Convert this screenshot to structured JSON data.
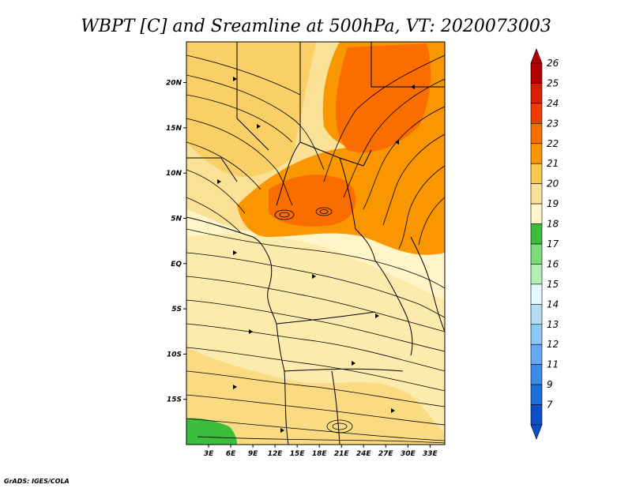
{
  "title": "WBPT [C] and Sreamline at 500hPa, VT: 2020073003",
  "credit": "GrADS: IGES/COLA",
  "lon_labels": [
    "3E",
    "6E",
    "9E",
    "12E",
    "15E",
    "18E",
    "21E",
    "24E",
    "27E",
    "30E",
    "33E"
  ],
  "lon_values": [
    3,
    6,
    9,
    12,
    15,
    18,
    21,
    24,
    27,
    30,
    33
  ],
  "lat_labels": [
    "20N",
    "15N",
    "10N",
    "5N",
    "EQ",
    "5S",
    "10S",
    "15S"
  ],
  "lat_values": [
    20,
    15,
    10,
    5,
    0,
    -5,
    -10,
    -15
  ],
  "map_extent": {
    "lon": [
      0,
      35
    ],
    "lat": [
      -20,
      24.5
    ]
  },
  "colorbar": {
    "labels": [
      "26",
      "25",
      "24",
      "23",
      "22",
      "21",
      "20",
      "19",
      "18",
      "17",
      "16",
      "15",
      "14",
      "13",
      "12",
      "11",
      "9",
      "7"
    ],
    "colors": [
      "#b40000",
      "#dc1e00",
      "#f03c00",
      "#fa6e00",
      "#fa9600",
      "#fac850",
      "#fae196",
      "#fff5c8",
      "#3cbe3c",
      "#78dc78",
      "#b4f0b4",
      "#e1faff",
      "#b4dcf5",
      "#8cc8f5",
      "#64aaf0",
      "#3c8ce6",
      "#1e6ed7",
      "#0a50c8"
    ]
  }
}
